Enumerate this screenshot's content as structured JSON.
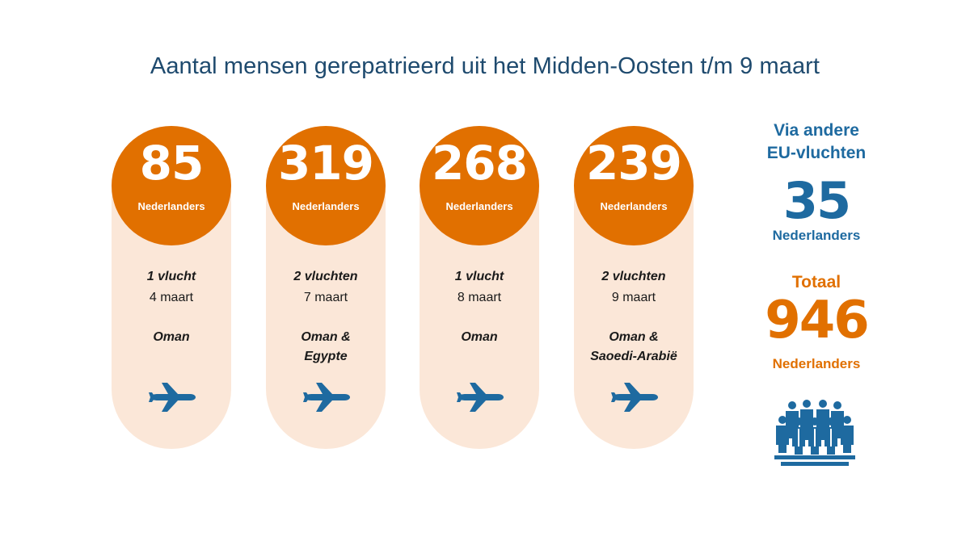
{
  "title": "Aantal mensen gerepatrieerd uit het Midden-Oosten t/m 9 maart",
  "unit_label": "Nederlanders",
  "colors": {
    "orange": "#e17000",
    "pill_bg": "#fbe7d8",
    "blue": "#1e6aa0",
    "title_blue": "#1e4a6e"
  },
  "columns": [
    {
      "count": "85",
      "flights": "1 vlucht",
      "date": "4 maart",
      "destination": "Oman",
      "icon": "airplane-icon"
    },
    {
      "count": "319",
      "flights": "2 vluchten",
      "date": "7 maart",
      "destination": "Oman &\nEgypte",
      "icon": "airplane-icon"
    },
    {
      "count": "268",
      "flights": "1 vlucht",
      "date": "8 maart",
      "destination": "Oman",
      "icon": "airplane-icon"
    },
    {
      "count": "239",
      "flights": "2 vluchten",
      "date": "9 maart",
      "destination": "Oman &\nSaoedi-Arabië",
      "icon": "airplane-icon"
    }
  ],
  "side": {
    "via_label": "Via andere\nEU-vluchten",
    "via_count": "35",
    "via_unit": "Nederlanders",
    "total_label": "Totaal",
    "total_count": "946",
    "total_unit": "Nederlanders",
    "icon": "people-group-icon"
  }
}
